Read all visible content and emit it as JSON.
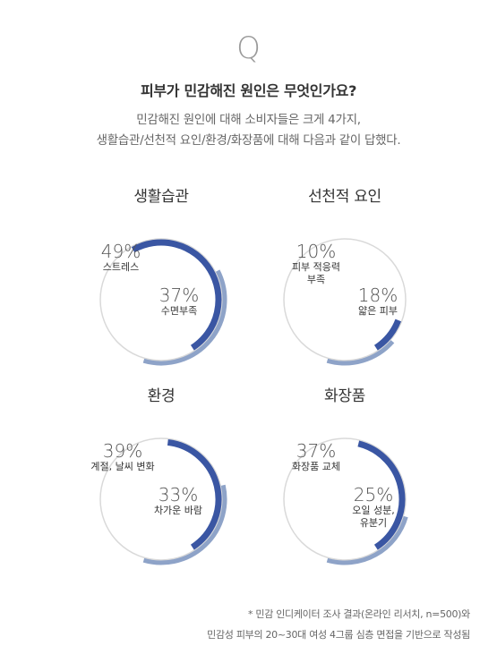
{
  "header": {
    "q_mark": "Q",
    "question": "피부가 민감해진 원인은 무엇인가요?",
    "desc_line1": "민감해진 원인에 대해 소비자들은 크게 4가지,",
    "desc_line2": "생활습관/선천적 요인/환경/화장품에 대해 다음과 같이 답했다."
  },
  "colors": {
    "primary": "#3a56a3",
    "secondary": "#8ea3c8",
    "ring": "#d9d9d9"
  },
  "chart_data": [
    {
      "type": "pie",
      "title": "생활습관",
      "series": [
        {
          "label": "스트레스",
          "value": 49,
          "value_text": "49%"
        },
        {
          "label": "수면부족",
          "value": 37,
          "value_text": "37%"
        }
      ]
    },
    {
      "type": "pie",
      "title": "선천적 요인",
      "series": [
        {
          "label": "피부 적응력\n부족",
          "value": 10,
          "value_text": "10%"
        },
        {
          "label": "얇은 피부",
          "value": 18,
          "value_text": "18%"
        }
      ]
    },
    {
      "type": "pie",
      "title": "환경",
      "series": [
        {
          "label": "계절, 날씨 변화",
          "value": 39,
          "value_text": "39%"
        },
        {
          "label": "차가운 바람",
          "value": 33,
          "value_text": "33%"
        }
      ]
    },
    {
      "type": "pie",
      "title": "화장품",
      "series": [
        {
          "label": "화장품 교체",
          "value": 37,
          "value_text": "37%"
        },
        {
          "label": "오일 성분,\n유분기",
          "value": 25,
          "value_text": "25%"
        }
      ]
    }
  ],
  "footer": {
    "line1": "* 민감 인디케이터 조사 결과(온라인 리서치, n=500)와",
    "line2": "민감성 피부의 20~30대 여성 4그룹 심층 면접을 기반으로 작성됨"
  }
}
